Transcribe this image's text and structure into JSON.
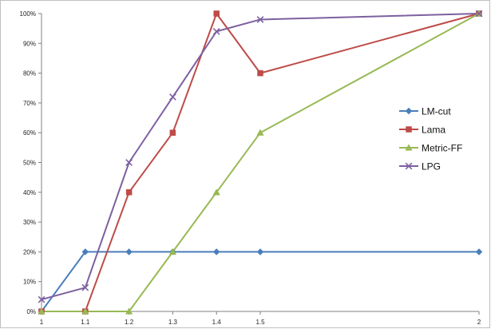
{
  "chart_data": {
    "type": "line",
    "x": [
      1,
      1.1,
      1.2,
      1.3,
      1.4,
      1.5,
      2
    ],
    "x_tick_labels": [
      "1",
      "1.1",
      "1.2",
      "1.3",
      "1.4",
      "1.5",
      "2"
    ],
    "xlim": [
      1,
      2
    ],
    "ylim": [
      0,
      100
    ],
    "y_ticks": [
      0,
      10,
      20,
      30,
      40,
      50,
      60,
      70,
      80,
      90,
      100
    ],
    "y_tick_labels": [
      "0%",
      "10%",
      "20%",
      "30%",
      "40%",
      "50%",
      "60%",
      "70%",
      "80%",
      "90%",
      "100%"
    ],
    "grid": false,
    "legend_position": "right",
    "series": [
      {
        "name": "LM-cut",
        "color": "#4a7ebb",
        "marker": "diamond",
        "values": [
          0,
          20,
          20,
          20,
          20,
          20,
          20
        ]
      },
      {
        "name": "Lama",
        "color": "#be4b48",
        "marker": "square",
        "values": [
          0,
          0,
          40,
          60,
          100,
          80,
          100
        ]
      },
      {
        "name": "Metric-FF",
        "color": "#98b954",
        "marker": "triangle",
        "values": [
          0,
          0,
          0,
          20,
          40,
          60,
          100
        ]
      },
      {
        "name": "LPG",
        "color": "#7d60a0",
        "marker": "x",
        "values": [
          4,
          8,
          50,
          72,
          94,
          98,
          100
        ]
      }
    ]
  }
}
